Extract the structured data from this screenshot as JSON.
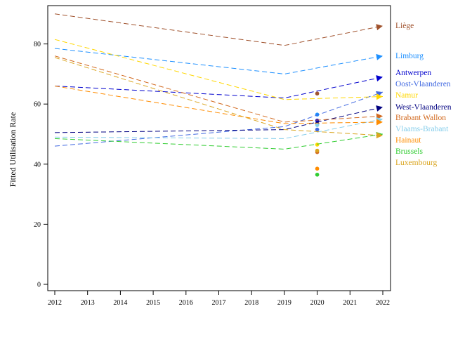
{
  "chart_data": {
    "type": "line",
    "title": "",
    "xlabel": "",
    "ylabel": "Fitted Utilisation Rate",
    "xlim": [
      2012,
      2022
    ],
    "ylim": [
      0,
      90
    ],
    "xticks": [
      "2012",
      "2013",
      "2014",
      "2015",
      "2016",
      "2017",
      "2018",
      "2019",
      "2020",
      "2021",
      "2022"
    ],
    "yticks": [
      "0",
      "20",
      "40",
      "60",
      "80"
    ],
    "line_style": "dashed",
    "series": [
      {
        "name": "Liège",
        "color": "#A0522D",
        "x": [
          2012,
          2019,
          2022
        ],
        "y": [
          90,
          79.5,
          86
        ],
        "point2020": 63.5
      },
      {
        "name": "Limburg",
        "color": "#1E90FF",
        "x": [
          2012,
          2019,
          2022
        ],
        "y": [
          78.5,
          70,
          76
        ],
        "point2020": 56.5
      },
      {
        "name": "Antwerpen",
        "color": "#0000CD",
        "x": [
          2012,
          2019,
          2022
        ],
        "y": [
          66,
          62,
          69
        ],
        "point2020": 54.5
      },
      {
        "name": "Oost-Vlaanderen",
        "color": "#4169E1",
        "x": [
          2012,
          2019,
          2022
        ],
        "y": [
          46,
          52.5,
          64
        ],
        "point2020": 51.5
      },
      {
        "name": "Namur",
        "color": "#FFD700",
        "x": [
          2012,
          2019,
          2022
        ],
        "y": [
          81.5,
          61.5,
          62.5
        ],
        "point2020": 46.5
      },
      {
        "name": "West-Vlaanderen",
        "color": "#000080",
        "x": [
          2012,
          2019,
          2022
        ],
        "y": [
          50.5,
          51.5,
          59
        ],
        "point2020": 53.5
      },
      {
        "name": "Brabant Wallon",
        "color": "#D2691E",
        "x": [
          2012,
          2019,
          2022
        ],
        "y": [
          76,
          54,
          56
        ],
        "point2020": 44
      },
      {
        "name": "Vlaams-Brabant",
        "color": "#87CEEB",
        "x": [
          2012,
          2019,
          2022
        ],
        "y": [
          49,
          48.5,
          55
        ],
        "point2020": 53
      },
      {
        "name": "Hainaut",
        "color": "#FF8C00",
        "x": [
          2012,
          2019,
          2022
        ],
        "y": [
          66,
          53.5,
          54
        ],
        "point2020": 38.5
      },
      {
        "name": "Brussels",
        "color": "#32CD32",
        "x": [
          2012,
          2019,
          2022
        ],
        "y": [
          48.5,
          45,
          50
        ],
        "point2020": 36.5
      },
      {
        "name": "Luxembourg",
        "color": "#DAA520",
        "x": [
          2012,
          2019,
          2022
        ],
        "y": [
          75.5,
          51.5,
          49.5
        ],
        "point2020": 44.5
      }
    ]
  }
}
